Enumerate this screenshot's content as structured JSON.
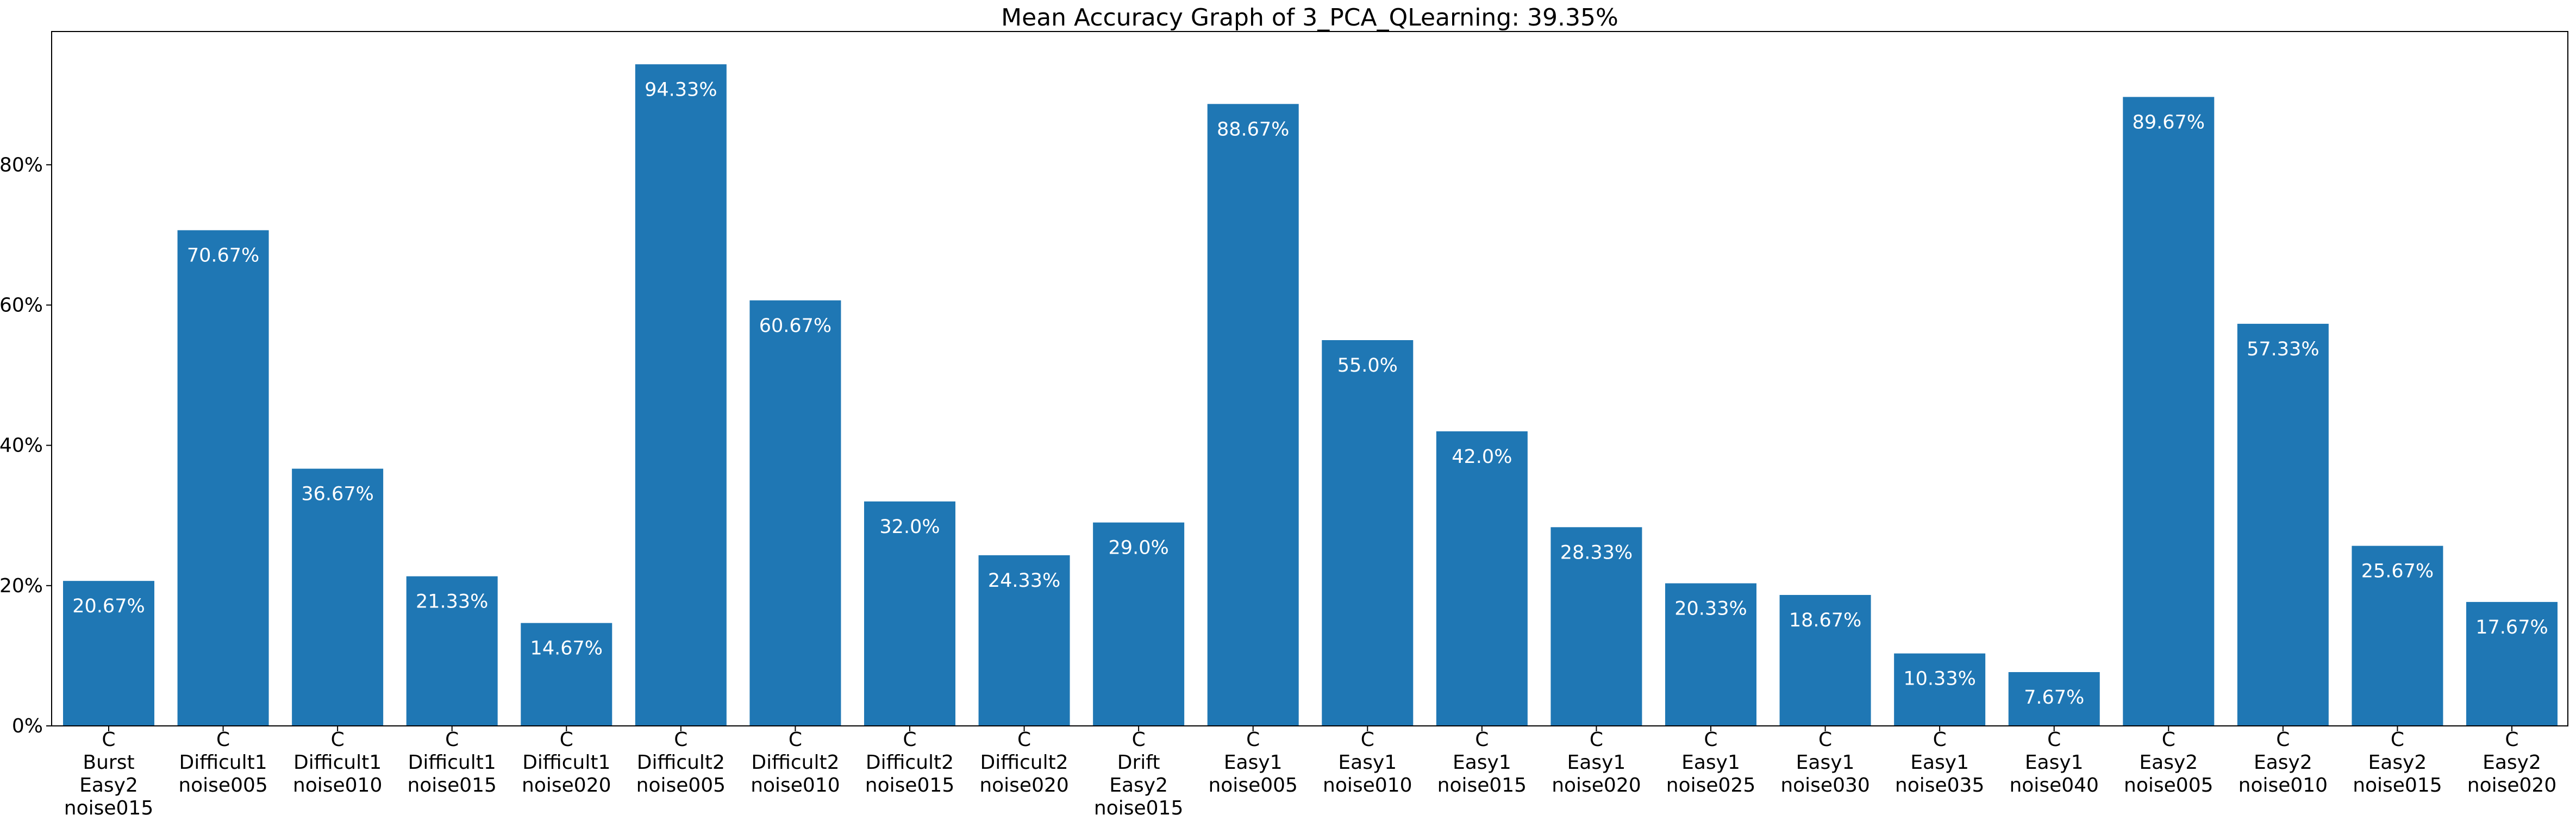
{
  "chart_data": {
    "type": "bar",
    "title": "Mean Accuracy Graph of 3_PCA_QLearning: 39.35%",
    "xlabel": "",
    "ylabel": "",
    "ylim": [
      0,
      99
    ],
    "yticks": [
      0,
      20,
      40,
      60,
      80
    ],
    "ytick_labels": [
      "0%",
      "20%",
      "40%",
      "60%",
      "80%"
    ],
    "grid": false,
    "bar_color": "#1f77b4",
    "categories": [
      [
        "C",
        "Burst",
        "Easy2",
        "noise015"
      ],
      [
        "C",
        "Difficult1",
        "noise005"
      ],
      [
        "C",
        "Difficult1",
        "noise010"
      ],
      [
        "C",
        "Difficult1",
        "noise015"
      ],
      [
        "C",
        "Difficult1",
        "noise020"
      ],
      [
        "C",
        "Difficult2",
        "noise005"
      ],
      [
        "C",
        "Difficult2",
        "noise010"
      ],
      [
        "C",
        "Difficult2",
        "noise015"
      ],
      [
        "C",
        "Difficult2",
        "noise020"
      ],
      [
        "C",
        "Drift",
        "Easy2",
        "noise015"
      ],
      [
        "C",
        "Easy1",
        "noise005"
      ],
      [
        "C",
        "Easy1",
        "noise010"
      ],
      [
        "C",
        "Easy1",
        "noise015"
      ],
      [
        "C",
        "Easy1",
        "noise020"
      ],
      [
        "C",
        "Easy1",
        "noise025"
      ],
      [
        "C",
        "Easy1",
        "noise030"
      ],
      [
        "C",
        "Easy1",
        "noise035"
      ],
      [
        "C",
        "Easy1",
        "noise040"
      ],
      [
        "C",
        "Easy2",
        "noise005"
      ],
      [
        "C",
        "Easy2",
        "noise010"
      ],
      [
        "C",
        "Easy2",
        "noise015"
      ],
      [
        "C",
        "Easy2",
        "noise020"
      ]
    ],
    "values": [
      20.67,
      70.67,
      36.67,
      21.33,
      14.67,
      94.33,
      60.67,
      32.0,
      24.33,
      29.0,
      88.67,
      55.0,
      42.0,
      28.33,
      20.33,
      18.67,
      10.33,
      7.67,
      89.67,
      57.33,
      25.67,
      17.67
    ],
    "value_labels": [
      "20.67%",
      "70.67%",
      "36.67%",
      "21.33%",
      "14.67%",
      "94.33%",
      "60.67%",
      "32.0%",
      "24.33%",
      "29.0%",
      "88.67%",
      "55.0%",
      "42.0%",
      "28.33%",
      "20.33%",
      "18.67%",
      "10.33%",
      "7.67%",
      "89.67%",
      "57.33%",
      "25.67%",
      "17.67%"
    ]
  }
}
